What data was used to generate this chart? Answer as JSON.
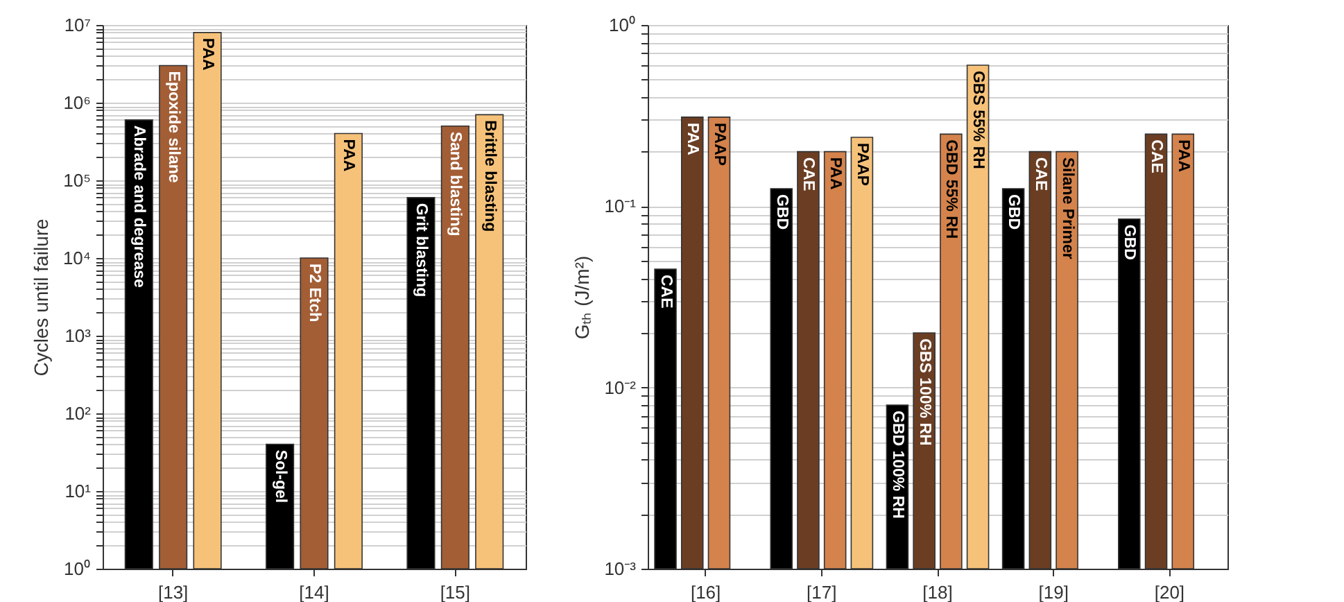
{
  "chart_data": [
    {
      "type": "bar",
      "ylabel": "Cycles until failure",
      "categories": [
        "[13]",
        "[14]",
        "[15]"
      ],
      "log": true,
      "grid": true,
      "ylim": [
        1,
        10000000
      ],
      "yticks": [
        {
          "value": 1,
          "label": "10⁰"
        },
        {
          "value": 10,
          "label": "10¹"
        },
        {
          "value": 100,
          "label": "10²"
        },
        {
          "value": 1000,
          "label": "10³"
        },
        {
          "value": 10000,
          "label": "10⁴"
        },
        {
          "value": 100000,
          "label": "10⁵"
        },
        {
          "value": 1000000,
          "label": "10⁶"
        },
        {
          "value": 10000000,
          "label": "10⁷"
        }
      ],
      "series": [
        {
          "color": "#000000",
          "values": [
            600000,
            40,
            60000
          ],
          "value_labels": [
            "Abrade and degrease",
            "Sol-gel",
            "Grit blasting"
          ]
        },
        {
          "color": "#a35e36",
          "values": [
            3000000,
            10000,
            500000
          ],
          "value_labels": [
            "Epoxide silane",
            "P2 Etch",
            "Sand blasting"
          ]
        },
        {
          "color": "#f6c27a",
          "values": [
            8000000,
            400000,
            700000
          ],
          "value_labels": [
            "PAA",
            "PAA",
            "Brittle blasting"
          ]
        }
      ]
    },
    {
      "type": "bar",
      "ylabel": "Gₜₕ (J/m²)",
      "categories": [
        "[16]",
        "[17]",
        "[18]",
        "[19]",
        "[20]"
      ],
      "log": true,
      "grid": true,
      "ylim": [
        0.001,
        1
      ],
      "yticks": [
        {
          "value": 0.001,
          "label": "10⁻³"
        },
        {
          "value": 0.01,
          "label": "10⁻²"
        },
        {
          "value": 0.1,
          "label": "10⁻¹"
        },
        {
          "value": 1,
          "label": "10⁰"
        }
      ],
      "series": [
        {
          "color": "#000000",
          "values": [
            0.045,
            0.125,
            0.008,
            0.125,
            0.085
          ],
          "value_labels": [
            "CAE",
            "GBD",
            "GBD 100% RH",
            "GBD",
            "GBD"
          ]
        },
        {
          "color": "#6b3e24",
          "values": [
            0.31,
            0.2,
            0.02,
            0.2,
            0.25
          ],
          "value_labels": [
            "PAA",
            "CAE",
            "GBS 100% RH",
            "CAE",
            "CAE"
          ]
        },
        {
          "color": "#d4834c",
          "values": [
            0.31,
            0.2,
            0.25,
            0.2,
            0.25
          ],
          "value_labels": [
            "PAAP",
            "PAA",
            "GBD 55% RH",
            "Silane Primer",
            "PAA"
          ]
        },
        {
          "color": "#f6c27a",
          "values": [
            null,
            0.24,
            0.6,
            null,
            null
          ],
          "value_labels": [
            null,
            "PAAP",
            "GBS 55% RH",
            null,
            null
          ]
        }
      ]
    }
  ]
}
